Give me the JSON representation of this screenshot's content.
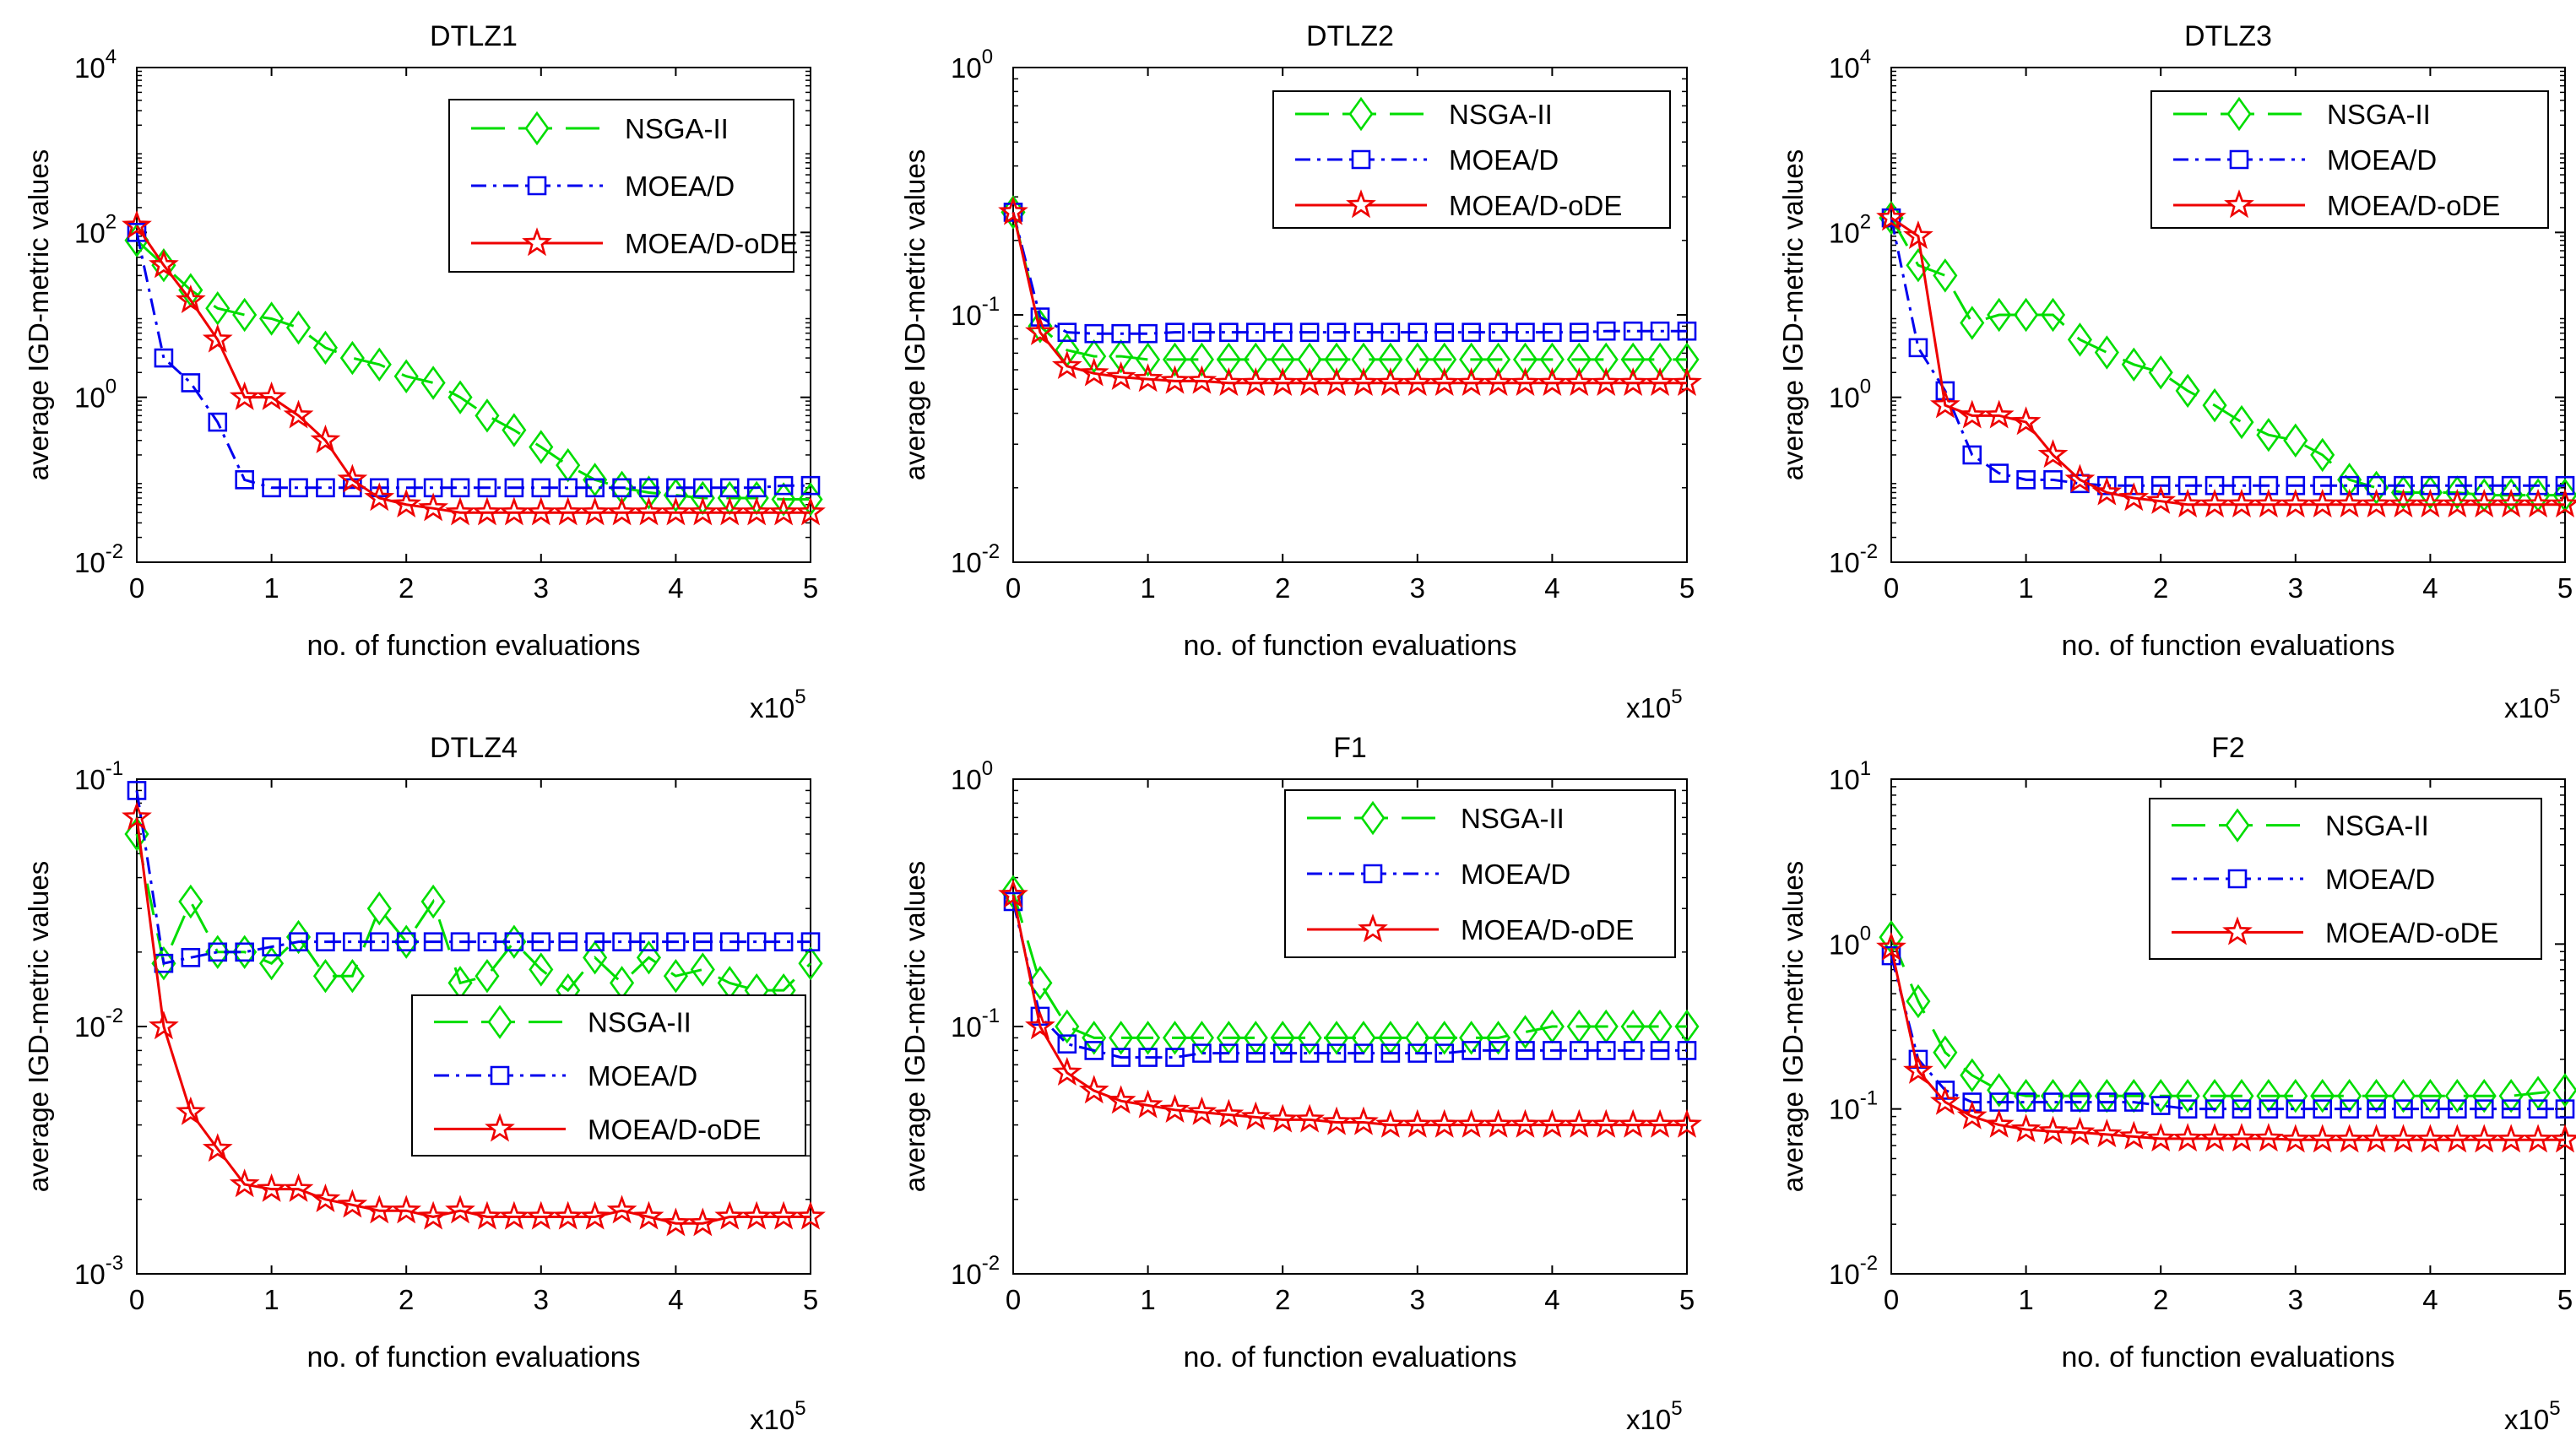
{
  "figure": {
    "colors": {
      "NSGA-II": "#00dd00",
      "MOEA/D": "#0000ee",
      "MOEA/D-oDE": "#ee0000",
      "axis": "#000000",
      "background": "#ffffff"
    },
    "x_multiplier": {
      "base": "x10",
      "exp": "5"
    }
  },
  "chart_data": [
    {
      "type": "line",
      "title": "DTLZ1",
      "xlabel": "no. of function evaluations",
      "ylabel": "average IGD-metric values",
      "yscale": "log",
      "ylim": [
        0.01,
        10000
      ],
      "xlim": [
        0,
        5
      ],
      "xticks": [
        "0",
        "1",
        "2",
        "3",
        "4",
        "5"
      ],
      "yticks": [
        {
          "base": "10",
          "exp": "-2"
        },
        {
          "base": "10",
          "exp": "0"
        },
        {
          "base": "10",
          "exp": "2"
        },
        {
          "base": "10",
          "exp": "4"
        }
      ],
      "legend": {
        "position": "top-right",
        "entries": [
          "NSGA-II",
          "MOEA/D",
          "MOEA/D-oDE"
        ]
      },
      "x": [
        0,
        0.2,
        0.4,
        0.6,
        0.8,
        1.0,
        1.2,
        1.4,
        1.6,
        1.8,
        2.0,
        2.2,
        2.4,
        2.6,
        2.8,
        3.0,
        3.2,
        3.4,
        3.6,
        3.8,
        4.0,
        4.2,
        4.4,
        4.6,
        4.8,
        5.0
      ],
      "series": [
        {
          "name": "NSGA-II",
          "marker": "diamond",
          "values": [
            80,
            40,
            20,
            12,
            10,
            9,
            7,
            4,
            3,
            2.5,
            1.8,
            1.5,
            1.0,
            0.6,
            0.4,
            0.25,
            0.15,
            0.1,
            0.08,
            0.07,
            0.065,
            0.06,
            0.06,
            0.06,
            0.058,
            0.058
          ]
        },
        {
          "name": "MOEA/D",
          "marker": "square",
          "values": [
            100,
            3,
            1.5,
            0.5,
            0.1,
            0.08,
            0.08,
            0.08,
            0.08,
            0.08,
            0.08,
            0.08,
            0.08,
            0.08,
            0.08,
            0.08,
            0.08,
            0.08,
            0.08,
            0.08,
            0.08,
            0.08,
            0.08,
            0.08,
            0.085,
            0.085
          ]
        },
        {
          "name": "MOEA/D-oDE",
          "marker": "star",
          "values": [
            120,
            40,
            15,
            5,
            1.0,
            1.0,
            0.6,
            0.3,
            0.1,
            0.06,
            0.05,
            0.045,
            0.04,
            0.04,
            0.04,
            0.04,
            0.04,
            0.04,
            0.04,
            0.04,
            0.04,
            0.04,
            0.04,
            0.04,
            0.04,
            0.04
          ]
        }
      ]
    },
    {
      "type": "line",
      "title": "DTLZ2",
      "xlabel": "no. of function evaluations",
      "ylabel": "average IGD-metric values",
      "yscale": "log",
      "ylim": [
        0.01,
        1
      ],
      "xlim": [
        0,
        5
      ],
      "xticks": [
        "0",
        "1",
        "2",
        "3",
        "4",
        "5"
      ],
      "yticks": [
        {
          "base": "10",
          "exp": "-2"
        },
        {
          "base": "10",
          "exp": "-1"
        },
        {
          "base": "10",
          "exp": "0"
        }
      ],
      "legend": {
        "position": "top-right",
        "entries": [
          "NSGA-II",
          "MOEA/D",
          "MOEA/D-oDE"
        ]
      },
      "x": [
        0,
        0.2,
        0.4,
        0.6,
        0.8,
        1.0,
        1.2,
        1.4,
        1.6,
        1.8,
        2.0,
        2.2,
        2.4,
        2.6,
        2.8,
        3.0,
        3.2,
        3.4,
        3.6,
        3.8,
        4.0,
        4.2,
        4.4,
        4.6,
        4.8,
        5.0
      ],
      "series": [
        {
          "name": "NSGA-II",
          "marker": "diamond",
          "values": [
            0.26,
            0.09,
            0.072,
            0.068,
            0.068,
            0.066,
            0.066,
            0.066,
            0.066,
            0.066,
            0.066,
            0.066,
            0.066,
            0.066,
            0.066,
            0.066,
            0.066,
            0.066,
            0.066,
            0.066,
            0.066,
            0.066,
            0.066,
            0.066,
            0.066,
            0.066
          ]
        },
        {
          "name": "MOEA/D",
          "marker": "square",
          "values": [
            0.26,
            0.098,
            0.085,
            0.084,
            0.084,
            0.084,
            0.085,
            0.085,
            0.085,
            0.085,
            0.085,
            0.085,
            0.085,
            0.085,
            0.085,
            0.085,
            0.085,
            0.085,
            0.085,
            0.085,
            0.085,
            0.085,
            0.086,
            0.086,
            0.086,
            0.086
          ]
        },
        {
          "name": "MOEA/D-oDE",
          "marker": "star",
          "values": [
            0.26,
            0.085,
            0.062,
            0.058,
            0.056,
            0.055,
            0.054,
            0.054,
            0.053,
            0.053,
            0.053,
            0.053,
            0.053,
            0.053,
            0.053,
            0.053,
            0.053,
            0.053,
            0.053,
            0.053,
            0.053,
            0.053,
            0.053,
            0.053,
            0.053,
            0.053
          ]
        }
      ]
    },
    {
      "type": "line",
      "title": "DTLZ3",
      "xlabel": "no. of function evaluations",
      "ylabel": "average IGD-metric values",
      "yscale": "log",
      "ylim": [
        0.01,
        10000
      ],
      "xlim": [
        0,
        5
      ],
      "xticks": [
        "0",
        "1",
        "2",
        "3",
        "4",
        "5"
      ],
      "yticks": [
        {
          "base": "10",
          "exp": "-2"
        },
        {
          "base": "10",
          "exp": "0"
        },
        {
          "base": "10",
          "exp": "2"
        },
        {
          "base": "10",
          "exp": "4"
        }
      ],
      "legend": {
        "position": "top-right",
        "entries": [
          "NSGA-II",
          "MOEA/D",
          "MOEA/D-oDE"
        ]
      },
      "x": [
        0,
        0.2,
        0.4,
        0.6,
        0.8,
        1.0,
        1.2,
        1.4,
        1.6,
        1.8,
        2.0,
        2.2,
        2.4,
        2.6,
        2.8,
        3.0,
        3.2,
        3.4,
        3.6,
        3.8,
        4.0,
        4.2,
        4.4,
        4.6,
        4.8,
        5.0
      ],
      "series": [
        {
          "name": "NSGA-II",
          "marker": "diamond",
          "values": [
            150,
            40,
            30,
            8,
            10,
            10,
            10,
            5,
            3.5,
            2.5,
            2.0,
            1.2,
            0.8,
            0.5,
            0.35,
            0.3,
            0.2,
            0.1,
            0.08,
            0.07,
            0.07,
            0.07,
            0.065,
            0.065,
            0.065,
            0.065
          ]
        },
        {
          "name": "MOEA/D",
          "marker": "square",
          "values": [
            150,
            4,
            1.2,
            0.2,
            0.12,
            0.1,
            0.1,
            0.09,
            0.085,
            0.085,
            0.085,
            0.085,
            0.085,
            0.085,
            0.085,
            0.085,
            0.085,
            0.085,
            0.085,
            0.085,
            0.085,
            0.085,
            0.085,
            0.085,
            0.085,
            0.085
          ]
        },
        {
          "name": "MOEA/D-oDE",
          "marker": "star",
          "values": [
            150,
            90,
            0.8,
            0.6,
            0.6,
            0.5,
            0.2,
            0.1,
            0.07,
            0.06,
            0.055,
            0.05,
            0.05,
            0.05,
            0.05,
            0.05,
            0.05,
            0.05,
            0.05,
            0.05,
            0.05,
            0.05,
            0.05,
            0.05,
            0.05,
            0.05
          ]
        }
      ]
    },
    {
      "type": "line",
      "title": "DTLZ4",
      "xlabel": "no. of function evaluations",
      "ylabel": "average IGD-metric values",
      "yscale": "log",
      "ylim": [
        0.001,
        0.1
      ],
      "xlim": [
        0,
        5
      ],
      "xticks": [
        "0",
        "1",
        "2",
        "3",
        "4",
        "5"
      ],
      "yticks": [
        {
          "base": "10",
          "exp": "-3"
        },
        {
          "base": "10",
          "exp": "-2"
        },
        {
          "base": "10",
          "exp": "-1"
        }
      ],
      "legend": {
        "position": "bottom-right",
        "entries": [
          "NSGA-II",
          "MOEA/D",
          "MOEA/D-oDE"
        ]
      },
      "x": [
        0,
        0.2,
        0.4,
        0.6,
        0.8,
        1.0,
        1.2,
        1.4,
        1.6,
        1.8,
        2.0,
        2.2,
        2.4,
        2.6,
        2.8,
        3.0,
        3.2,
        3.4,
        3.6,
        3.8,
        4.0,
        4.2,
        4.4,
        4.6,
        4.8,
        5.0
      ],
      "series": [
        {
          "name": "NSGA-II",
          "marker": "diamond",
          "values": [
            0.06,
            0.018,
            0.032,
            0.02,
            0.02,
            0.018,
            0.023,
            0.016,
            0.016,
            0.03,
            0.022,
            0.032,
            0.015,
            0.016,
            0.022,
            0.017,
            0.014,
            0.019,
            0.015,
            0.019,
            0.016,
            0.017,
            0.015,
            0.014,
            0.014,
            0.018
          ]
        },
        {
          "name": "MOEA/D",
          "marker": "square",
          "values": [
            0.09,
            0.018,
            0.019,
            0.02,
            0.02,
            0.021,
            0.022,
            0.022,
            0.022,
            0.022,
            0.022,
            0.022,
            0.022,
            0.022,
            0.022,
            0.022,
            0.022,
            0.022,
            0.022,
            0.022,
            0.022,
            0.022,
            0.022,
            0.022,
            0.022,
            0.022
          ]
        },
        {
          "name": "MOEA/D-oDE",
          "marker": "star",
          "values": [
            0.07,
            0.01,
            0.0045,
            0.0032,
            0.0023,
            0.0022,
            0.0022,
            0.002,
            0.0019,
            0.0018,
            0.0018,
            0.0017,
            0.0018,
            0.0017,
            0.0017,
            0.0017,
            0.0017,
            0.0017,
            0.0018,
            0.0017,
            0.0016,
            0.0016,
            0.0017,
            0.0017,
            0.0017,
            0.0017
          ]
        }
      ]
    },
    {
      "type": "line",
      "title": "F1",
      "xlabel": "no. of function evaluations",
      "ylabel": "average IGD-metric values",
      "yscale": "log",
      "ylim": [
        0.01,
        1
      ],
      "xlim": [
        0,
        5
      ],
      "xticks": [
        "0",
        "1",
        "2",
        "3",
        "4",
        "5"
      ],
      "yticks": [
        {
          "base": "10",
          "exp": "-2"
        },
        {
          "base": "10",
          "exp": "-1"
        },
        {
          "base": "10",
          "exp": "0"
        }
      ],
      "legend": {
        "position": "top-right",
        "entries": [
          "NSGA-II",
          "MOEA/D",
          "MOEA/D-oDE"
        ]
      },
      "x": [
        0,
        0.2,
        0.4,
        0.6,
        0.8,
        1.0,
        1.2,
        1.4,
        1.6,
        1.8,
        2.0,
        2.2,
        2.4,
        2.6,
        2.8,
        3.0,
        3.2,
        3.4,
        3.6,
        3.8,
        4.0,
        4.2,
        4.4,
        4.6,
        4.8,
        5.0
      ],
      "series": [
        {
          "name": "NSGA-II",
          "marker": "diamond",
          "values": [
            0.35,
            0.15,
            0.1,
            0.09,
            0.09,
            0.09,
            0.09,
            0.09,
            0.09,
            0.09,
            0.09,
            0.09,
            0.09,
            0.09,
            0.09,
            0.09,
            0.09,
            0.09,
            0.09,
            0.095,
            0.1,
            0.1,
            0.1,
            0.1,
            0.1,
            0.1
          ]
        },
        {
          "name": "MOEA/D",
          "marker": "square",
          "values": [
            0.32,
            0.11,
            0.085,
            0.08,
            0.075,
            0.075,
            0.075,
            0.078,
            0.078,
            0.078,
            0.078,
            0.078,
            0.078,
            0.078,
            0.078,
            0.078,
            0.078,
            0.08,
            0.08,
            0.08,
            0.08,
            0.08,
            0.08,
            0.08,
            0.08,
            0.08
          ]
        },
        {
          "name": "MOEA/D-oDE",
          "marker": "star",
          "values": [
            0.34,
            0.1,
            0.065,
            0.055,
            0.05,
            0.048,
            0.046,
            0.045,
            0.044,
            0.043,
            0.042,
            0.042,
            0.041,
            0.041,
            0.04,
            0.04,
            0.04,
            0.04,
            0.04,
            0.04,
            0.04,
            0.04,
            0.04,
            0.04,
            0.04,
            0.04
          ]
        }
      ]
    },
    {
      "type": "line",
      "title": "F2",
      "xlabel": "no. of function evaluations",
      "ylabel": "average IGD-metric values",
      "yscale": "log",
      "ylim": [
        0.01,
        10
      ],
      "xlim": [
        0,
        5
      ],
      "xticks": [
        "0",
        "1",
        "2",
        "3",
        "4",
        "5"
      ],
      "yticks": [
        {
          "base": "10",
          "exp": "-2"
        },
        {
          "base": "10",
          "exp": "-1"
        },
        {
          "base": "10",
          "exp": "0"
        },
        {
          "base": "10",
          "exp": "1"
        }
      ],
      "legend": {
        "position": "top-right",
        "entries": [
          "NSGA-II",
          "MOEA/D",
          "MOEA/D-oDE"
        ]
      },
      "x": [
        0,
        0.2,
        0.4,
        0.6,
        0.8,
        1.0,
        1.2,
        1.4,
        1.6,
        1.8,
        2.0,
        2.2,
        2.4,
        2.6,
        2.8,
        3.0,
        3.2,
        3.4,
        3.6,
        3.8,
        4.0,
        4.2,
        4.4,
        4.6,
        4.8,
        5.0
      ],
      "series": [
        {
          "name": "NSGA-II",
          "marker": "diamond",
          "values": [
            1.1,
            0.45,
            0.22,
            0.16,
            0.13,
            0.12,
            0.12,
            0.12,
            0.12,
            0.12,
            0.12,
            0.12,
            0.12,
            0.12,
            0.12,
            0.12,
            0.12,
            0.12,
            0.12,
            0.12,
            0.12,
            0.12,
            0.12,
            0.12,
            0.125,
            0.13
          ]
        },
        {
          "name": "MOEA/D",
          "marker": "square",
          "values": [
            0.85,
            0.2,
            0.13,
            0.11,
            0.11,
            0.11,
            0.11,
            0.11,
            0.11,
            0.11,
            0.105,
            0.1,
            0.1,
            0.1,
            0.1,
            0.1,
            0.1,
            0.1,
            0.1,
            0.1,
            0.1,
            0.1,
            0.1,
            0.1,
            0.1,
            0.1
          ]
        },
        {
          "name": "MOEA/D-oDE",
          "marker": "star",
          "values": [
            0.95,
            0.17,
            0.11,
            0.09,
            0.08,
            0.075,
            0.073,
            0.072,
            0.07,
            0.068,
            0.066,
            0.066,
            0.066,
            0.066,
            0.066,
            0.065,
            0.065,
            0.065,
            0.065,
            0.065,
            0.065,
            0.065,
            0.065,
            0.065,
            0.065,
            0.065
          ]
        }
      ]
    }
  ]
}
